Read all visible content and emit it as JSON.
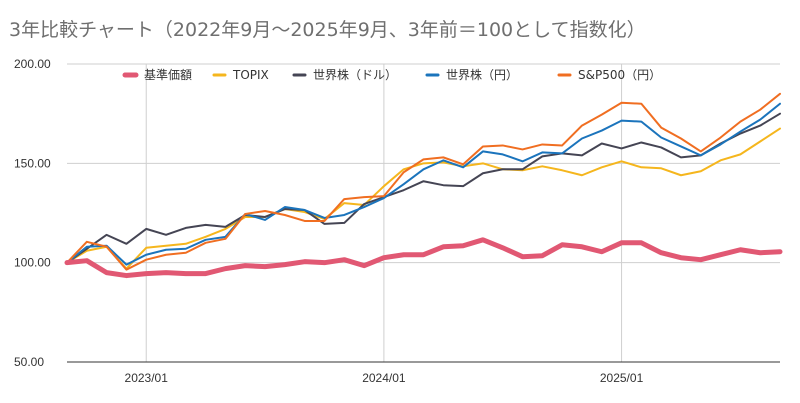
{
  "chart_data": {
    "type": "line",
    "title": "3年比較チャート（2022年9月～2025年9月、3年前＝100として指数化）",
    "xlabel": "",
    "ylabel": "",
    "x": [
      "2022/09",
      "2022/10",
      "2022/11",
      "2022/12",
      "2023/01",
      "2023/02",
      "2023/03",
      "2023/04",
      "2023/05",
      "2023/06",
      "2023/07",
      "2023/08",
      "2023/09",
      "2023/10",
      "2023/11",
      "2023/12",
      "2024/01",
      "2024/02",
      "2024/03",
      "2024/04",
      "2024/05",
      "2024/06",
      "2024/07",
      "2024/08",
      "2024/09",
      "2024/10",
      "2024/11",
      "2024/12",
      "2025/01",
      "2025/02",
      "2025/03",
      "2025/04",
      "2025/05",
      "2025/06",
      "2025/07",
      "2025/08",
      "2025/09"
    ],
    "x_tick_labels": [
      "2023/01",
      "2024/01",
      "2025/01"
    ],
    "ylim": [
      50,
      200
    ],
    "y_ticks": [
      "50.00",
      "100.00",
      "150.00",
      "200.00"
    ],
    "grid": true,
    "legend_position": "top",
    "series": [
      {
        "name": "基準価額",
        "color": "#e15873",
        "values": [
          100,
          101,
          95,
          93.5,
          94.5,
          95,
          94.5,
          94.5,
          97,
          98.5,
          98,
          99,
          100.5,
          100,
          101.5,
          98.5,
          102.5,
          104,
          104,
          108,
          108.5,
          111.5,
          107.5,
          103,
          103.5,
          109,
          108,
          105.5,
          110,
          110,
          105,
          102.5,
          101.5,
          104,
          106.5,
          105,
          105.5
        ]
      },
      {
        "name": "TOPIX",
        "color": "#f5b61d",
        "values": [
          100,
          106,
          108,
          97,
          107.5,
          108.5,
          109.5,
          113,
          117,
          123,
          123,
          127,
          125.5,
          122,
          130,
          129,
          138.5,
          147,
          150,
          150.5,
          148.5,
          150,
          147,
          146.5,
          148.5,
          146.5,
          144,
          148,
          151,
          148,
          147.5,
          144,
          146,
          151.5,
          154.5,
          161,
          167.5
        ]
      },
      {
        "name": "世界株（ドル）",
        "color": "#454554",
        "values": [
          100,
          107,
          114,
          109.5,
          117,
          114,
          117.5,
          119,
          118,
          124,
          123,
          127,
          126.5,
          119.5,
          120,
          129.5,
          133,
          136.5,
          141,
          139,
          138.5,
          145,
          147,
          147,
          153.5,
          155,
          154,
          160,
          157.5,
          160.5,
          158,
          153,
          154,
          160,
          165,
          169,
          175
        ]
      },
      {
        "name": "世界株（円）",
        "color": "#1b74bc",
        "values": [
          100,
          108,
          108.5,
          99,
          104,
          106.5,
          107,
          111.5,
          113,
          124.5,
          121.5,
          128,
          126.5,
          122.5,
          124,
          128,
          132.5,
          139.5,
          147,
          151.5,
          148,
          156,
          154.5,
          151,
          155.5,
          155,
          162.5,
          166.5,
          171.5,
          171,
          163,
          158.5,
          154,
          159.5,
          166,
          172,
          180
        ]
      },
      {
        "name": "S&P500（円）",
        "color": "#f06e21",
        "values": [
          100,
          110.5,
          108,
          96.5,
          101.5,
          104,
          105,
          110,
          112,
          124.5,
          126,
          124,
          121,
          121,
          132,
          133,
          133.5,
          145.5,
          152,
          153,
          149.5,
          158.5,
          159,
          157,
          159.5,
          159,
          169,
          174.5,
          180.5,
          180,
          168,
          162.5,
          156,
          163,
          171,
          177,
          185
        ]
      }
    ]
  }
}
